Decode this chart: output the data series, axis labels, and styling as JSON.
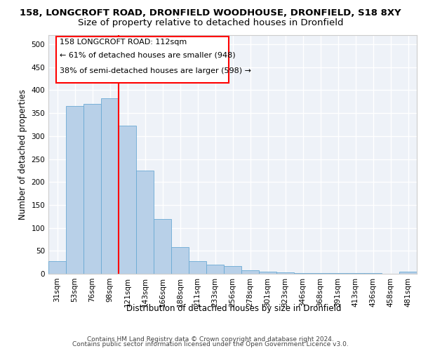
{
  "title_line1": "158, LONGCROFT ROAD, DRONFIELD WOODHOUSE, DRONFIELD, S18 8XY",
  "title_line2": "Size of property relative to detached houses in Dronfield",
  "xlabel": "Distribution of detached houses by size in Dronfield",
  "ylabel": "Number of detached properties",
  "categories": [
    "31sqm",
    "53sqm",
    "76sqm",
    "98sqm",
    "121sqm",
    "143sqm",
    "166sqm",
    "188sqm",
    "211sqm",
    "233sqm",
    "256sqm",
    "278sqm",
    "301sqm",
    "323sqm",
    "346sqm",
    "368sqm",
    "391sqm",
    "413sqm",
    "436sqm",
    "458sqm",
    "481sqm"
  ],
  "values": [
    28,
    365,
    370,
    383,
    323,
    225,
    120,
    58,
    27,
    20,
    17,
    8,
    5,
    3,
    2,
    1,
    1,
    1,
    1,
    0,
    5
  ],
  "bar_color": "#b8d0e8",
  "bar_edgecolor": "#6aaad4",
  "vline_pos": 3.5,
  "vline_color": "red",
  "annotation_line1": "158 LONGCROFT ROAD: 112sqm",
  "annotation_line2": "← 61% of detached houses are smaller (948)",
  "annotation_line3": "38% of semi-detached houses are larger (598) →",
  "annotation_box_edgecolor": "red",
  "ylim": [
    0,
    520
  ],
  "yticks": [
    0,
    50,
    100,
    150,
    200,
    250,
    300,
    350,
    400,
    450,
    500
  ],
  "footer_line1": "Contains HM Land Registry data © Crown copyright and database right 2024.",
  "footer_line2": "Contains public sector information licensed under the Open Government Licence v3.0.",
  "background_color": "#eef2f8",
  "grid_color": "#ffffff",
  "title1_fontsize": 9.5,
  "title2_fontsize": 9.5,
  "axis_label_fontsize": 8.5,
  "tick_fontsize": 7.5,
  "annotation_fontsize": 8,
  "footer_fontsize": 6.5
}
